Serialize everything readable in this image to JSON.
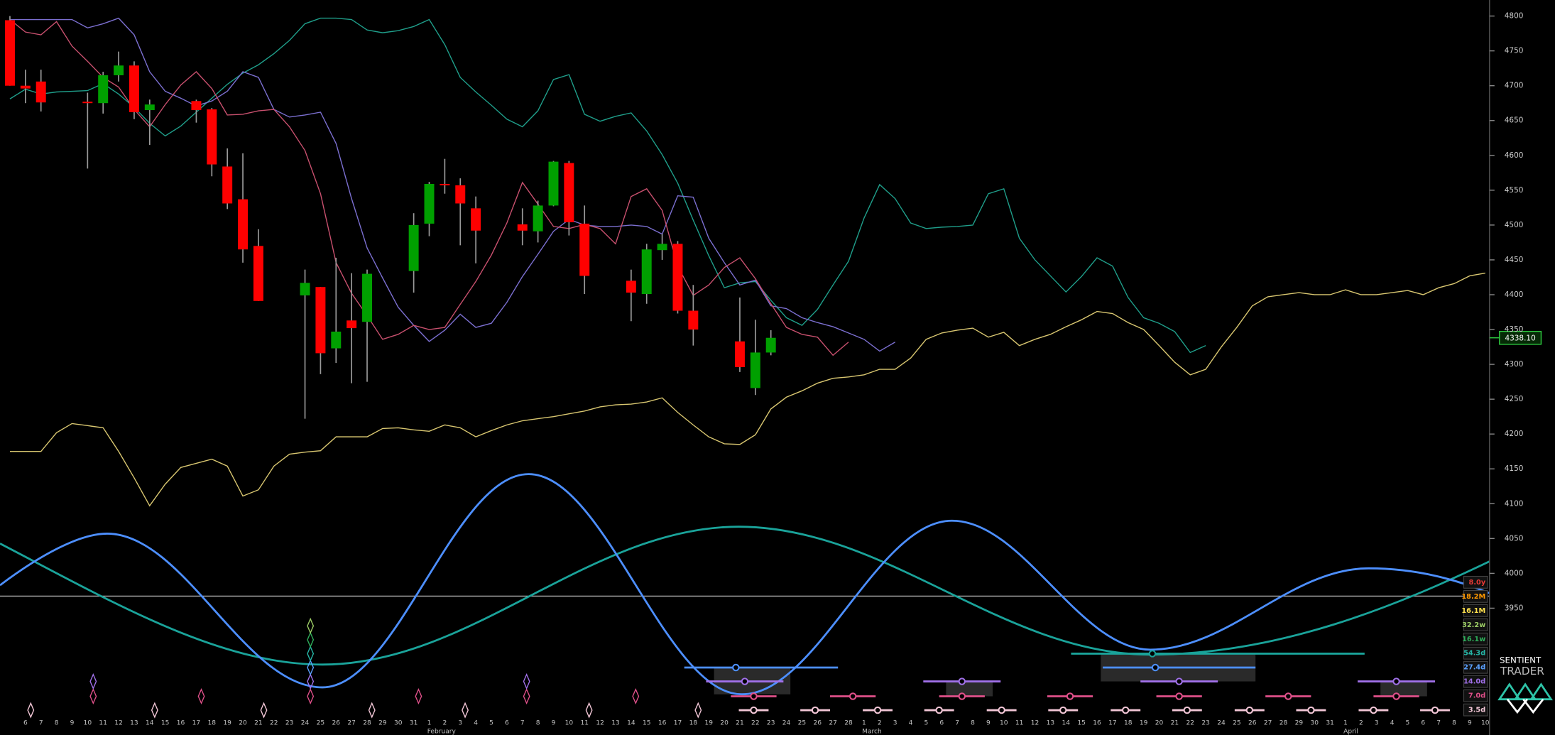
{
  "chart_data": {
    "type": "candlestick",
    "categories": [
      null,
      "6",
      "7",
      "8",
      "9",
      "10",
      "11",
      "12",
      "13",
      "14",
      "15",
      "16",
      "17",
      "18",
      "19",
      "20",
      "21",
      "22",
      "23",
      "24",
      "25",
      "26",
      "27",
      "28",
      "29",
      "30",
      "31",
      "1",
      "2",
      "3",
      "4",
      "5",
      "6",
      "7",
      "8",
      "9",
      "10",
      "11",
      "12",
      "13",
      "14",
      "15",
      "16",
      "17",
      "18",
      "19",
      "20",
      "21",
      "22",
      "23",
      "24",
      "25",
      "26",
      "27",
      "28",
      "1",
      "2",
      "3",
      "4",
      "5",
      "6",
      "7",
      "8",
      "9",
      "10",
      "11",
      "12",
      "13",
      "14",
      "15",
      "16",
      "17",
      "18",
      "19",
      "20",
      "21",
      "22",
      "23",
      "24",
      "25",
      "26",
      "27",
      "28",
      "29",
      "30",
      "31",
      "1",
      "2",
      "3",
      "4",
      "5",
      "6",
      "7",
      "8",
      "9",
      "10"
    ],
    "months": [
      "February",
      "March",
      "April"
    ],
    "candles": {
      "up_color": "#00a000",
      "down_color": "#ff0000",
      "open": [
        4794,
        4700,
        4706,
        null,
        null,
        4677,
        4675,
        4715,
        4729,
        4665,
        null,
        null,
        4678,
        4666,
        4584,
        4537,
        4470,
        null,
        null,
        4399,
        4411,
        4323,
        4363,
        4361,
        null,
        null,
        4434,
        4502,
        4559,
        4557,
        4524,
        null,
        null,
        4501,
        4491,
        4528,
        4589,
        4502,
        null,
        null,
        4420,
        4401,
        4464,
        4473,
        4377,
        null,
        null,
        4333,
        4266,
        4317,
        null,
        null,
        null,
        null,
        null,
        null,
        null,
        null,
        null,
        null,
        null,
        null,
        null,
        null,
        null,
        null,
        null,
        null,
        null,
        null,
        null,
        null,
        null,
        null,
        null,
        null,
        null,
        null,
        null,
        null,
        null,
        null,
        null,
        null,
        null,
        null,
        null,
        null,
        null,
        null,
        null,
        null,
        null,
        null,
        null,
        null
      ],
      "high": [
        4800,
        4723,
        4723,
        null,
        null,
        4690,
        4720,
        4749,
        4735,
        4680,
        null,
        null,
        4680,
        4668,
        4610,
        4603,
        4494,
        null,
        null,
        4436,
        4411,
        4453,
        4431,
        4436,
        null,
        null,
        4517,
        4562,
        4595,
        4567,
        4541,
        null,
        null,
        4524,
        4535,
        4592,
        4592,
        4528,
        null,
        null,
        4436,
        4473,
        4487,
        4477,
        4414,
        null,
        null,
        4396,
        4364,
        4349,
        null,
        null,
        null,
        null,
        null,
        null,
        null,
        null,
        null,
        null,
        null,
        null,
        null,
        null,
        null,
        null,
        null,
        null,
        null,
        null,
        null,
        null,
        null,
        null,
        null,
        null,
        null,
        null,
        null,
        null,
        null,
        null,
        null,
        null,
        null,
        null,
        null,
        null,
        null,
        null,
        null,
        null,
        null,
        null,
        null,
        null
      ],
      "low": [
        4700,
        4675,
        4663,
        null,
        null,
        4581,
        4660,
        4706,
        4652,
        4615,
        null,
        null,
        4647,
        4570,
        4523,
        4446,
        4391,
        null,
        null,
        4222,
        4286,
        4302,
        4273,
        4275,
        null,
        null,
        4403,
        4484,
        4545,
        4471,
        4445,
        null,
        null,
        4471,
        4475,
        4527,
        4485,
        4401,
        null,
        null,
        4362,
        4387,
        4450,
        4373,
        4327,
        null,
        null,
        4289,
        4256,
        4313,
        null,
        null,
        null,
        null,
        null,
        null,
        null,
        null,
        null,
        null,
        null,
        null,
        null,
        null,
        null,
        null,
        null,
        null,
        null,
        null,
        null,
        null,
        null,
        null,
        null,
        null,
        null,
        null,
        null,
        null,
        null,
        null,
        null,
        null,
        null,
        null,
        null,
        null,
        null,
        null,
        null,
        null,
        null,
        null,
        null,
        null
      ],
      "close": [
        4700,
        4696,
        4676,
        null,
        null,
        4675,
        4715,
        4729,
        4662,
        4673,
        null,
        null,
        4665,
        4587,
        4531,
        4465,
        4391,
        null,
        null,
        4417,
        4316,
        4347,
        4352,
        4430,
        null,
        null,
        4500,
        4559,
        4557,
        4531,
        4492,
        null,
        null,
        4492,
        4528,
        4591,
        4504,
        4427,
        null,
        null,
        4403,
        4465,
        4473,
        4377,
        4350,
        null,
        null,
        4296,
        4317,
        4338.1,
        null,
        null,
        null,
        null,
        null,
        null,
        null,
        null,
        null,
        null,
        null,
        null,
        null,
        null,
        null,
        null,
        null,
        null,
        null,
        null,
        null,
        null,
        null,
        null,
        null,
        null,
        null,
        null,
        null,
        null,
        null,
        null,
        null,
        null,
        null,
        null,
        null,
        null,
        null,
        null,
        null,
        null,
        null,
        null,
        null,
        null
      ]
    },
    "series": [
      {
        "color": "#d8c670",
        "values": [
          4175,
          4175,
          4175,
          4202,
          4215,
          4212,
          4209,
          4175,
          4137,
          4097,
          4128,
          4152,
          4158,
          4164,
          4154,
          4111,
          4120,
          4154,
          4171,
          4174,
          4176,
          4196,
          4196,
          4196,
          4208,
          4209,
          4206,
          4204,
          4213,
          4209,
          4196,
          4205,
          4213,
          4219,
          4222,
          4225,
          4229,
          4233,
          4239,
          4242,
          4243,
          4246,
          4252,
          4231,
          4213,
          4196,
          4186,
          4185,
          4199,
          4236,
          4253,
          4262,
          4273,
          4280,
          4282,
          4285,
          4293,
          4293,
          4309,
          4336,
          4345,
          4349,
          4352,
          4339,
          4346,
          4327,
          4336,
          4343,
          4354,
          4364,
          4376,
          4373,
          4360,
          4350,
          4327,
          4303,
          4285,
          4293,
          4325,
          4353,
          4384,
          4397,
          4400,
          4403,
          4400,
          4400,
          4407,
          4400,
          4400,
          4403,
          4406,
          4400,
          4410,
          4416,
          4427,
          4431
        ]
      },
      {
        "color": "#1f9e8a",
        "values": [
          4681,
          4695,
          4688,
          4691,
          4692,
          4693,
          4703,
          4688,
          4669,
          4646,
          4628,
          4642,
          4662,
          4682,
          4702,
          4718,
          4730,
          4746,
          4765,
          4789,
          4797,
          4797,
          4795,
          4780,
          4776,
          4779,
          4785,
          4795,
          4759,
          4712,
          4691,
          4672,
          4652,
          4641,
          4664,
          4709,
          4716,
          4659,
          4649,
          4656,
          4661,
          4635,
          4601,
          4560,
          4507,
          4456,
          4410,
          4417,
          4419,
          4392,
          4367,
          4356,
          4379,
          4414,
          4448,
          4510,
          4558,
          4538,
          4503,
          4495,
          4497,
          4498,
          4500,
          4545,
          4552,
          4481,
          4450,
          4427,
          4404,
          4426,
          4453,
          4441,
          4396,
          4367,
          4359,
          4347,
          4317,
          4327,
          null,
          null,
          null,
          null,
          null,
          null,
          null,
          null,
          null,
          null,
          null,
          null,
          null,
          null,
          null,
          null,
          null,
          null
        ]
      },
      {
        "color": "#7b6fd0",
        "values": [
          4795,
          4795,
          4795,
          4795,
          4795,
          4783,
          4789,
          4797,
          4773,
          4720,
          4692,
          4682,
          4671,
          4678,
          4692,
          4720,
          4712,
          4666,
          4655,
          4658,
          4662,
          4617,
          4538,
          4467,
          4424,
          4382,
          4356,
          4333,
          4349,
          4372,
          4353,
          4359,
          4389,
          4426,
          4458,
          4491,
          4508,
          4500,
          4498,
          4498,
          4500,
          4498,
          4487,
          4542,
          4540,
          4481,
          4446,
          4414,
          4421,
          4384,
          4380,
          4367,
          4360,
          4354,
          4345,
          4336,
          4319,
          4332,
          null,
          null,
          null,
          null,
          null,
          null,
          null,
          null,
          null,
          null,
          null,
          null,
          null,
          null,
          null,
          null,
          null,
          null,
          null,
          null,
          null,
          null,
          null,
          null,
          null,
          null,
          null,
          null,
          null,
          null,
          null,
          null,
          null,
          null,
          null,
          null,
          null,
          null
        ]
      },
      {
        "color": "#c8506e",
        "values": [
          4795,
          4777,
          4773,
          4792,
          4757,
          4735,
          4712,
          4698,
          4666,
          4641,
          4673,
          4701,
          4720,
          4696,
          4658,
          4659,
          4664,
          4666,
          4641,
          4607,
          4545,
          4446,
          4402,
          4370,
          4336,
          4343,
          4356,
          4350,
          4353,
          4386,
          4419,
          4457,
          4503,
          4561,
          4530,
          4498,
          4495,
          4501,
          4495,
          4473,
          4541,
          4552,
          4521,
          4441,
          4399,
          4414,
          4439,
          4453,
          4423,
          4387,
          4353,
          4343,
          4339,
          4313,
          4332,
          null,
          null,
          null,
          null,
          null,
          null,
          null,
          null,
          null,
          null,
          null,
          null,
          null,
          null,
          null,
          null,
          null,
          null,
          null,
          null,
          null,
          null,
          null,
          null,
          null,
          null,
          null,
          null,
          null,
          null,
          null,
          null,
          null,
          null,
          null,
          null,
          null,
          null,
          null,
          null,
          null
        ]
      }
    ],
    "ylim": [
      3768,
      4823
    ],
    "yticks": [
      3950,
      4000,
      4050,
      4100,
      4150,
      4200,
      4250,
      4300,
      4350,
      4400,
      4450,
      4500,
      4550,
      4600,
      4650,
      4700,
      4750,
      4800
    ],
    "last_price": {
      "value": 4338.1,
      "label": "4338.10"
    },
    "cycles": [
      {
        "label": "8.0y",
        "color": "#e53935"
      },
      {
        "label": "18.2M",
        "color": "#ff9800"
      },
      {
        "label": "16.1M",
        "color": "#ffe14d"
      },
      {
        "label": "32.2w",
        "color": "#9ccc65"
      },
      {
        "label": "16.1w",
        "color": "#2eae5a"
      },
      {
        "label": "54.3d",
        "color": "#26b5a6"
      },
      {
        "label": "27.4d",
        "color": "#5aa0ff"
      },
      {
        "label": "14.0d",
        "color": "#a070e8"
      },
      {
        "label": "7.0d",
        "color": "#e0508a"
      },
      {
        "label": "3.5d",
        "color": "#f2c6d6"
      }
    ]
  },
  "branding": {
    "name": "SENTIENT",
    "product": "TRADER"
  }
}
